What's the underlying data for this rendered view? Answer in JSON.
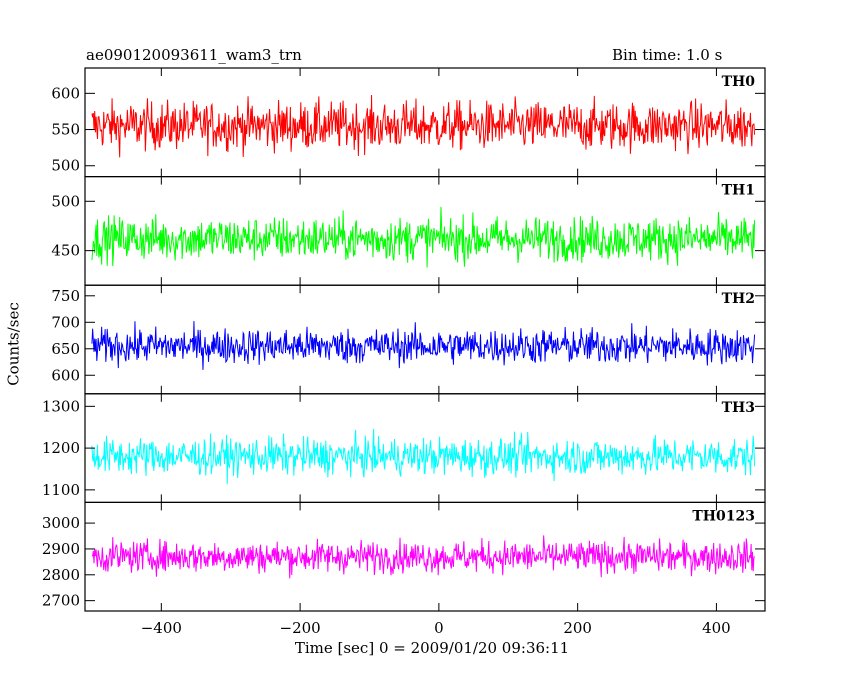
{
  "chart_data": {
    "type": "line",
    "title": "ae090120093611_wam3_trn",
    "subtitle": "Bin time: 1.0 s",
    "xlabel": "Time [sec] 0 = 2009/01/20 09:36:11",
    "ylabel": "Counts/sec",
    "xlim": [
      -510,
      470
    ],
    "xticks": [
      -400,
      -200,
      0,
      200,
      400
    ],
    "x_range": [
      -500,
      455
    ],
    "bin_time": 1.0,
    "grid": false,
    "panels": [
      {
        "name": "TH0",
        "color": "#ff0000",
        "ylim": [
          485,
          635
        ],
        "yticks": [
          500,
          550,
          600
        ],
        "mean": 555,
        "spread": 30
      },
      {
        "name": "TH1",
        "color": "#00ff00",
        "ylim": [
          415,
          525
        ],
        "yticks": [
          450,
          500
        ],
        "mean": 462,
        "spread": 20
      },
      {
        "name": "TH2",
        "color": "#0000ff",
        "ylim": [
          565,
          770
        ],
        "yticks": [
          600,
          650,
          700,
          750
        ],
        "mean": 655,
        "spread": 30
      },
      {
        "name": "TH3",
        "color": "#00ffff",
        "ylim": [
          1070,
          1330
        ],
        "yticks": [
          1100,
          1200,
          1300
        ],
        "mean": 1180,
        "spread": 40
      },
      {
        "name": "TH0123",
        "color": "#ff00ff",
        "ylim": [
          2660,
          3080
        ],
        "yticks": [
          2700,
          2800,
          2900,
          3000
        ],
        "mean": 2870,
        "spread": 55
      }
    ]
  }
}
